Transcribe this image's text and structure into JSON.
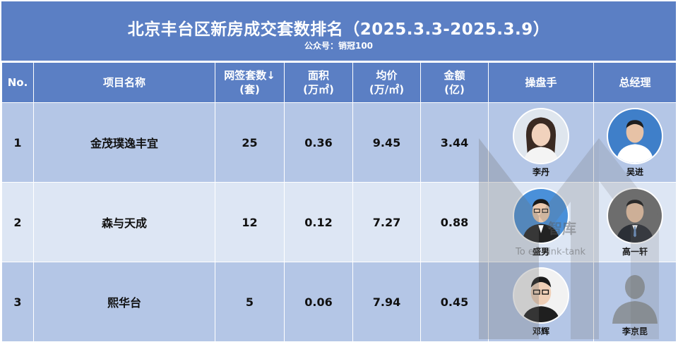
{
  "header": {
    "title": "北京丰台区新房成交套数排名（2025.3.3-2025.3.9）",
    "subtitle": "公众号：销冠100"
  },
  "columns": [
    "No.",
    "项目名称",
    "网签套数↓\n(套)",
    "面积\n(万㎡)",
    "均价\n(万/㎡)",
    "金额\n(亿)",
    "操盘手",
    "总经理"
  ],
  "rows": [
    {
      "no": "1",
      "project": "金茂璞逸丰宜",
      "units": "25",
      "area": "0.36",
      "price": "9.45",
      "amount": "3.44",
      "operator": "李丹",
      "manager": "吴进"
    },
    {
      "no": "2",
      "project": "森与天成",
      "units": "12",
      "area": "0.12",
      "price": "7.27",
      "amount": "0.88",
      "operator": "盛男",
      "manager": "高一轩"
    },
    {
      "no": "3",
      "project": "熙华台",
      "units": "5",
      "area": "0.06",
      "price": "7.94",
      "amount": "0.45",
      "operator": "邓辉",
      "manager": "李京昆"
    }
  ],
  "watermark": {
    "brand": "智库",
    "sub": "To   e Think-tank"
  },
  "colors": {
    "header_bg": "#5b7fc4",
    "row_dark": "#b4c6e6",
    "row_light": "#dde6f4"
  }
}
